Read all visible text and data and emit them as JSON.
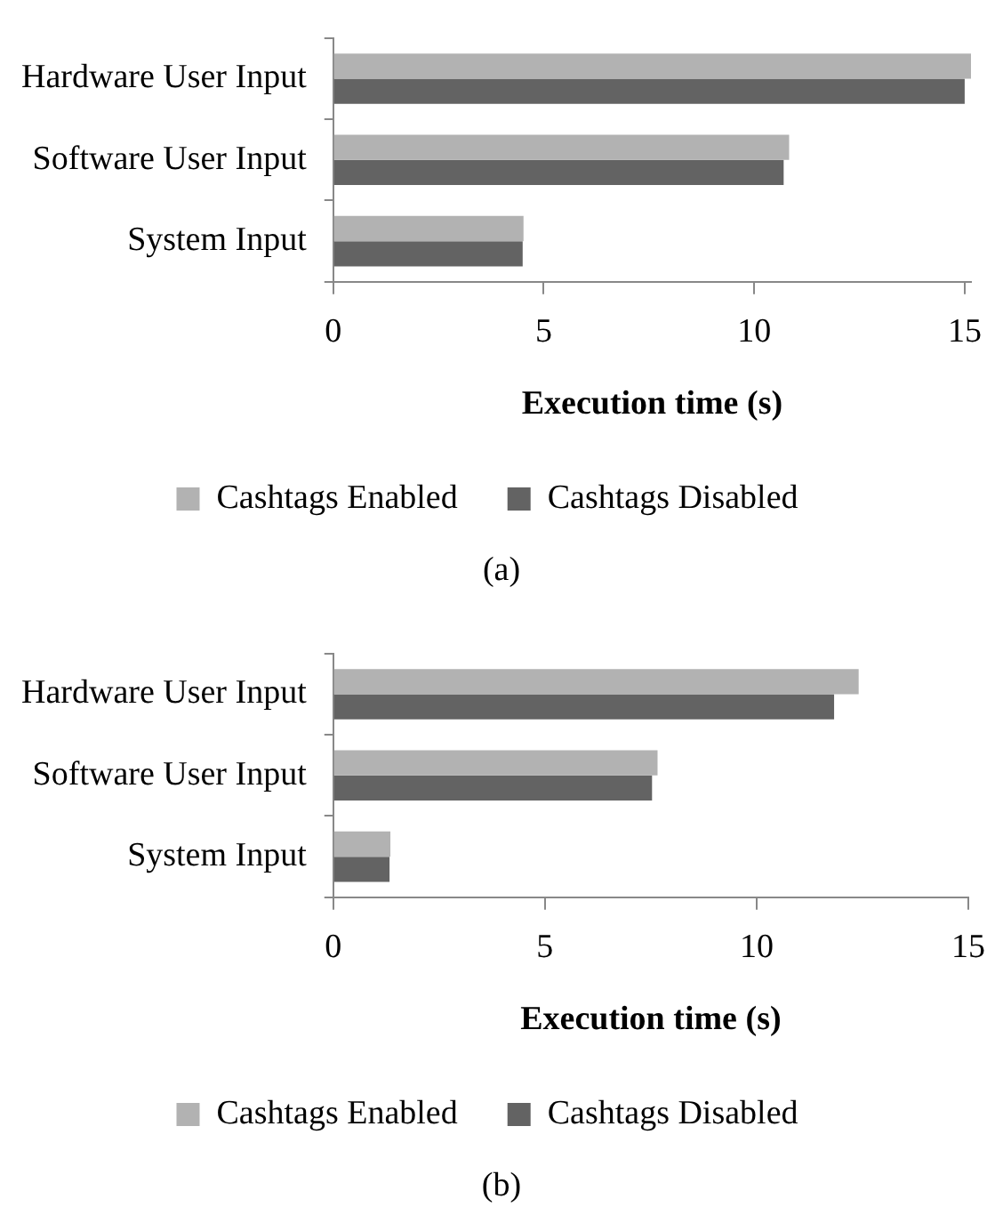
{
  "chart_data": [
    {
      "type": "bar",
      "orientation": "horizontal",
      "categories": [
        "Hardware User Input",
        "Software User Input",
        "System Input"
      ],
      "xlabel": "Execution time (s)",
      "xlim": [
        0,
        15.15
      ],
      "xticks": [
        0,
        5,
        10,
        15
      ],
      "grid": false,
      "legend": "bottom",
      "annotations": [
        "(a)"
      ],
      "series": [
        {
          "name": "Cashtags Enabled",
          "color": "#b2b2b2",
          "values": [
            15.15,
            10.83,
            4.52
          ]
        },
        {
          "name": "Cashtags Disabled",
          "color": "#636363",
          "values": [
            15.0,
            10.7,
            4.5
          ]
        }
      ]
    },
    {
      "type": "bar",
      "orientation": "horizontal",
      "categories": [
        "Hardware User Input",
        "Software User Input",
        "System Input"
      ],
      "xlabel": "Execution time (s)",
      "xlim": [
        0,
        15
      ],
      "xticks": [
        0,
        5,
        10,
        15
      ],
      "grid": false,
      "legend": "bottom",
      "annotations": [
        "(b)"
      ],
      "series": [
        {
          "name": "Cashtags Enabled",
          "color": "#b2b2b2",
          "values": [
            12.41,
            7.66,
            1.35
          ]
        },
        {
          "name": "Cashtags Disabled",
          "color": "#636363",
          "values": [
            11.83,
            7.53,
            1.33
          ]
        }
      ]
    }
  ]
}
